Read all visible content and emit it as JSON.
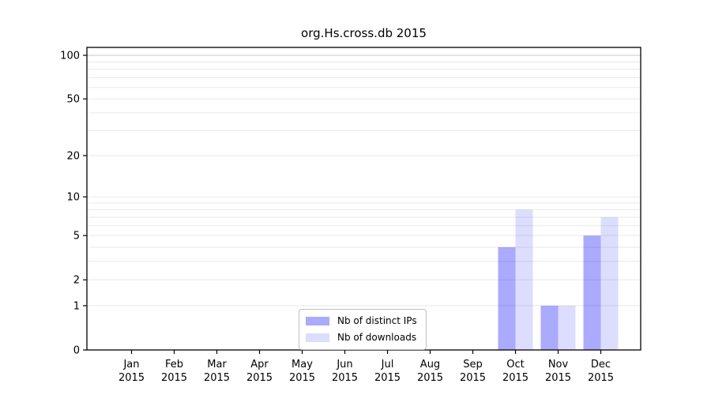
{
  "figure": {
    "title": "org.Hs.cross.db 2015"
  },
  "chart_data": {
    "type": "bar",
    "title": "org.Hs.cross.db 2015",
    "categories": [
      "Jan",
      "Feb",
      "Mar",
      "Apr",
      "May",
      "Jun",
      "Jul",
      "Aug",
      "Sep",
      "Oct",
      "Nov",
      "Dec"
    ],
    "x_tick_second_line": "2015",
    "series": [
      {
        "name": "Nb of distinct IPs",
        "color": "#aaaaff",
        "values": [
          0,
          0,
          0,
          0,
          0,
          0,
          0,
          0,
          0,
          4,
          1,
          5
        ]
      },
      {
        "name": "Nb of downloads",
        "color": "#ddddff",
        "values": [
          0,
          0,
          0,
          0,
          0,
          0,
          0,
          0,
          0,
          8,
          1,
          7
        ]
      }
    ],
    "xlabel": "",
    "ylabel": "",
    "y_scale": "log1p",
    "ylim": [
      0,
      100
    ],
    "yticks": [
      0,
      1,
      2,
      5,
      10,
      20,
      50,
      100
    ],
    "gridline_values": [
      1,
      2,
      3,
      4,
      5,
      6,
      7,
      8,
      9,
      10,
      20,
      30,
      40,
      50,
      60,
      70,
      80,
      90,
      100
    ],
    "emphasized_gridline": 100,
    "grid": true,
    "legend_position": "lower center"
  },
  "colors": {
    "bar_distinct_ips": "#aaaaff",
    "bar_downloads": "#ddddff",
    "spine": "#000000",
    "grid": "rgba(0,0,0,0.08)",
    "grid_emphasis": "rgba(0,0,0,0.22)",
    "background": "#ffffff",
    "legend_border": "#c0c0c0",
    "text": "#000000"
  }
}
